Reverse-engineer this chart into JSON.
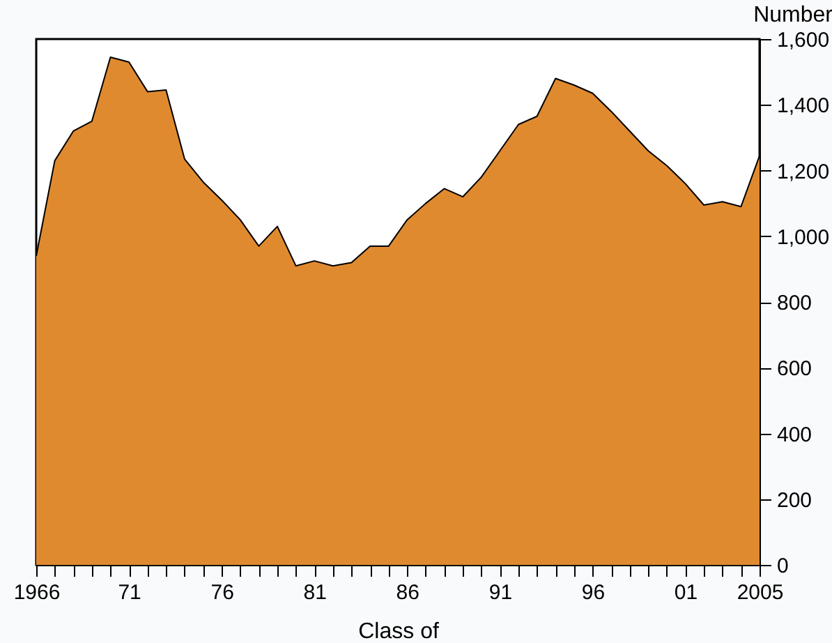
{
  "chart_data": {
    "type": "area",
    "xlabel": "Class of",
    "ylabel": "Number",
    "x": [
      1966,
      1967,
      1968,
      1969,
      1970,
      1971,
      1972,
      1973,
      1974,
      1975,
      1976,
      1977,
      1978,
      1979,
      1980,
      1981,
      1982,
      1983,
      1984,
      1985,
      1986,
      1987,
      1988,
      1989,
      1990,
      1991,
      1992,
      1993,
      1994,
      1995,
      1996,
      1997,
      1998,
      1999,
      2000,
      2001,
      2002,
      2003,
      2004,
      2005
    ],
    "series": [
      {
        "color": "#e08a30",
        "values": [
          940,
          1230,
          1320,
          1350,
          1545,
          1530,
          1440,
          1445,
          1235,
          1165,
          1110,
          1050,
          970,
          1030,
          910,
          925,
          910,
          920,
          970,
          970,
          1050,
          1100,
          1145,
          1120,
          1180,
          1260,
          1340,
          1365,
          1480,
          1460,
          1435,
          1380,
          1320,
          1260,
          1215,
          1160,
          1095,
          1105,
          1090,
          1245
        ]
      }
    ],
    "xlim": [
      1966,
      2005
    ],
    "xticks": [
      {
        "value": 1966,
        "label": "1966"
      },
      {
        "value": 1967,
        "label": null
      },
      {
        "value": 1968,
        "label": null
      },
      {
        "value": 1969,
        "label": null
      },
      {
        "value": 1970,
        "label": null
      },
      {
        "value": 1971,
        "label": "71"
      },
      {
        "value": 1972,
        "label": null
      },
      {
        "value": 1973,
        "label": null
      },
      {
        "value": 1974,
        "label": null
      },
      {
        "value": 1975,
        "label": null
      },
      {
        "value": 1976,
        "label": "76"
      },
      {
        "value": 1977,
        "label": null
      },
      {
        "value": 1978,
        "label": null
      },
      {
        "value": 1979,
        "label": null
      },
      {
        "value": 1980,
        "label": null
      },
      {
        "value": 1981,
        "label": "81"
      },
      {
        "value": 1982,
        "label": null
      },
      {
        "value": 1983,
        "label": null
      },
      {
        "value": 1984,
        "label": null
      },
      {
        "value": 1985,
        "label": null
      },
      {
        "value": 1986,
        "label": "86"
      },
      {
        "value": 1987,
        "label": null
      },
      {
        "value": 1988,
        "label": null
      },
      {
        "value": 1989,
        "label": null
      },
      {
        "value": 1990,
        "label": null
      },
      {
        "value": 1991,
        "label": "91"
      },
      {
        "value": 1992,
        "label": null
      },
      {
        "value": 1993,
        "label": null
      },
      {
        "value": 1994,
        "label": null
      },
      {
        "value": 1995,
        "label": null
      },
      {
        "value": 1996,
        "label": "96"
      },
      {
        "value": 1997,
        "label": null
      },
      {
        "value": 1998,
        "label": null
      },
      {
        "value": 1999,
        "label": null
      },
      {
        "value": 2000,
        "label": null
      },
      {
        "value": 2001,
        "label": "01"
      },
      {
        "value": 2002,
        "label": null
      },
      {
        "value": 2003,
        "label": null
      },
      {
        "value": 2004,
        "label": null
      },
      {
        "value": 2005,
        "label": "2005"
      }
    ],
    "ylim": [
      0,
      1600
    ],
    "yticks": [
      0,
      200,
      400,
      600,
      800,
      {
        "value": 1000,
        "label": "1,000"
      },
      {
        "value": 1200,
        "label": "1,200"
      },
      {
        "value": 1400,
        "label": "1,400"
      },
      {
        "value": 1600,
        "label": "1,600"
      }
    ]
  }
}
